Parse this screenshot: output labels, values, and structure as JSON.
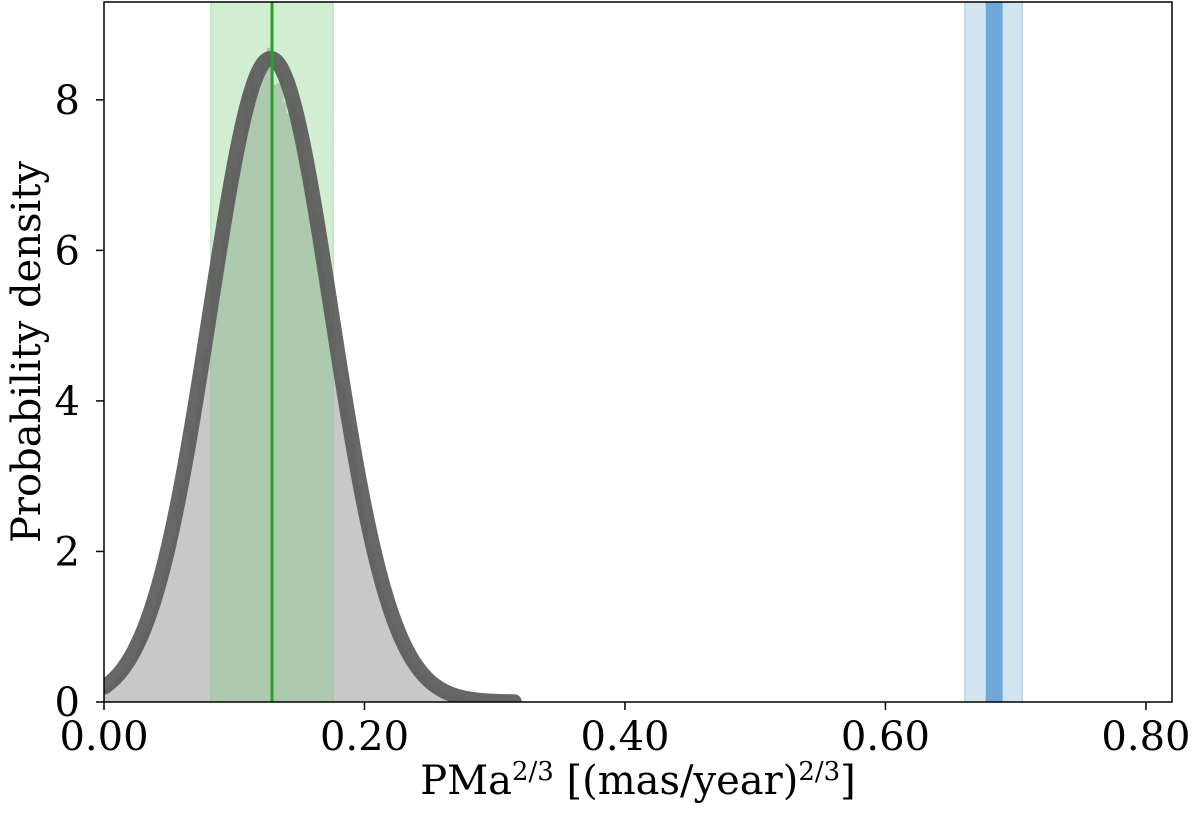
{
  "chart_data": {
    "type": "area",
    "title": "",
    "xlabel_parts": [
      {
        "text": "PMa",
        "sup": false
      },
      {
        "text": "2/3",
        "sup": true
      },
      {
        "text": " [(mas/year)",
        "sup": false
      },
      {
        "text": "2/3",
        "sup": true
      },
      {
        "text": "]",
        "sup": false
      }
    ],
    "ylabel": "Probability density",
    "xlim": [
      0.0,
      0.82
    ],
    "ylim": [
      0.0,
      9.3
    ],
    "xticks": [
      0.0,
      0.2,
      0.4,
      0.6,
      0.8
    ],
    "xtick_labels": [
      "0.00",
      "0.20",
      "0.40",
      "0.60",
      "0.80"
    ],
    "yticks": [
      0,
      2,
      4,
      6,
      8
    ],
    "ytick_labels": [
      "0",
      "2",
      "4",
      "6",
      "8"
    ],
    "grid": false,
    "histogram": {
      "name": "",
      "color": "#c8c8c8",
      "range": [
        0.0,
        0.315
      ],
      "bin_width": 0.0025,
      "peak_x": 0.128,
      "peak_density": 8.5,
      "sigma": 0.046
    },
    "fit_curve": {
      "name": "",
      "color": "#5a5a5a",
      "mean": 0.128,
      "sigma": 0.0466,
      "peak": 8.55,
      "x_range": [
        0.0,
        0.315
      ]
    },
    "green_band": {
      "x_min": 0.082,
      "x_max": 0.176,
      "color": "#7fcf7f",
      "opacity": 0.35
    },
    "green_line": {
      "x": 0.129,
      "color": "#2ca02c"
    },
    "blue_band": {
      "x_min": 0.661,
      "x_max": 0.705,
      "color": "#9ec4e0",
      "opacity": 0.45
    },
    "blue_line": {
      "x_min": 0.677,
      "x_max": 0.69,
      "color": "#6fa8d6"
    }
  }
}
